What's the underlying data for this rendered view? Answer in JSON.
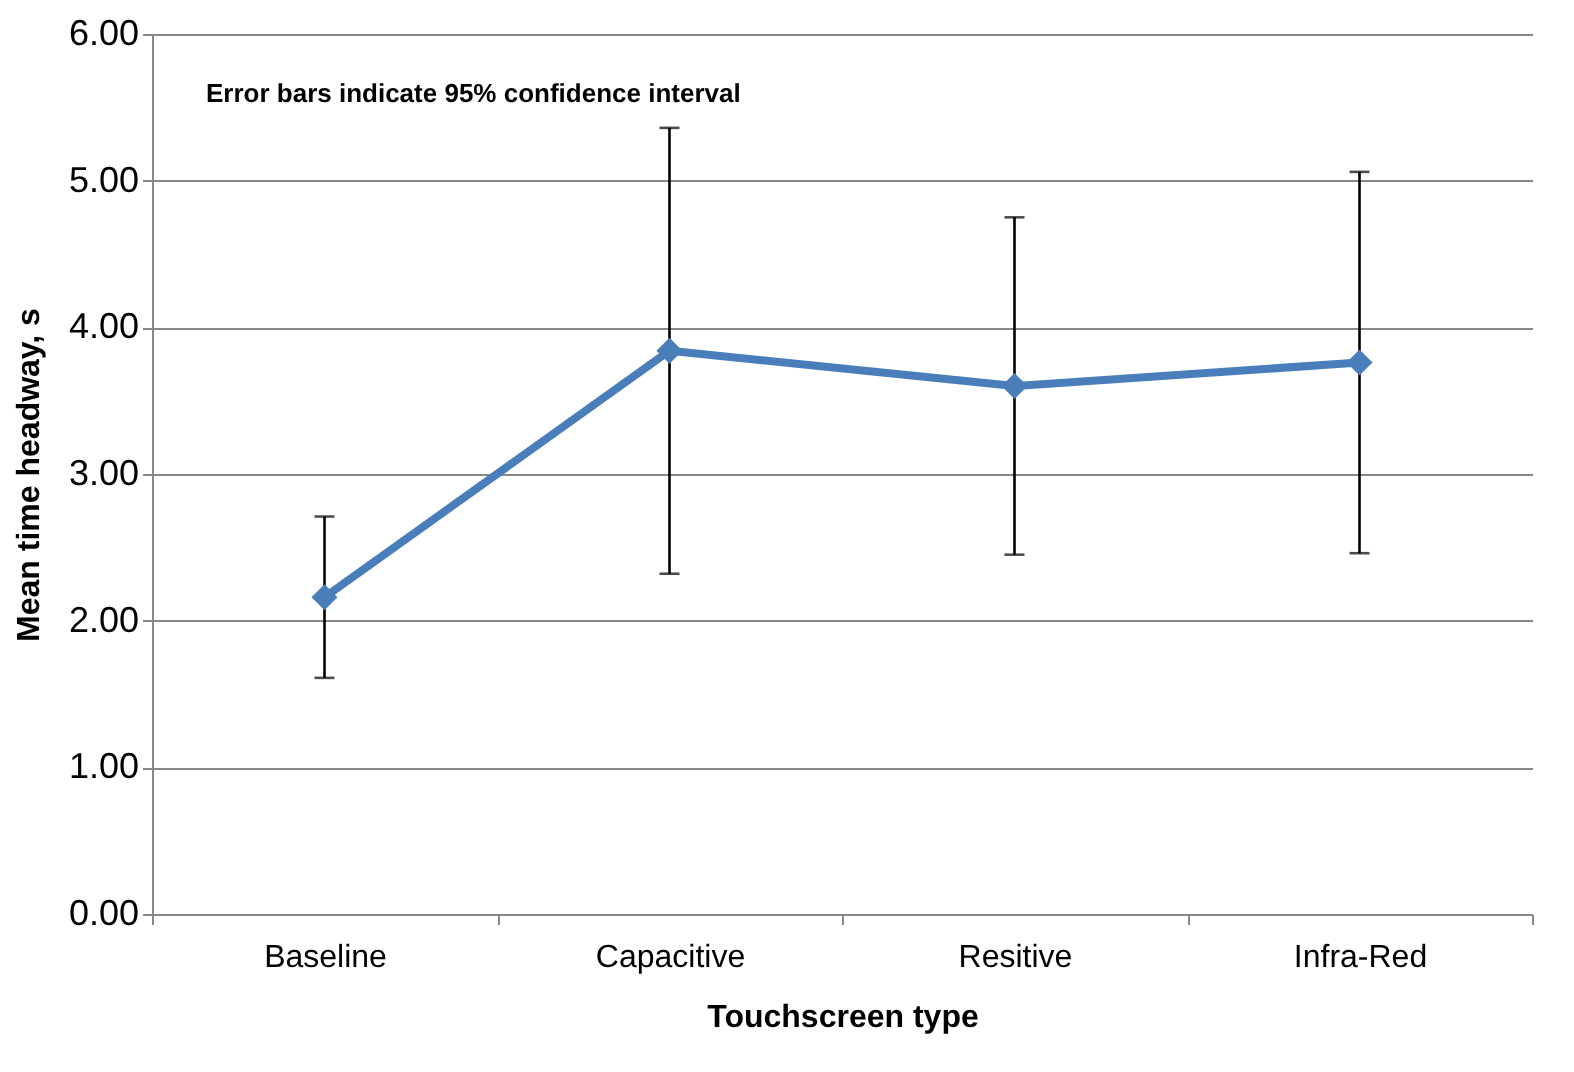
{
  "chart_data": {
    "type": "line",
    "xlabel": "Touchscreen type",
    "ylabel": "Mean time headway, s",
    "annotations": [
      "Error bars indicate 95% confidence interval"
    ],
    "categories": [
      "Baseline",
      "Capacitive",
      "Resitive",
      "Infra-Red"
    ],
    "series": [
      {
        "color": "#4a7ebb",
        "values": [
          2.16,
          3.84,
          3.6,
          3.76
        ],
        "errors": [
          0.55,
          1.52,
          1.15,
          1.3
        ]
      }
    ],
    "ylim": [
      0,
      6
    ],
    "yticks": [
      {
        "value": 0,
        "label": "0.00"
      },
      {
        "value": 1,
        "label": "1.00"
      },
      {
        "value": 2,
        "label": "2.00"
      },
      {
        "value": 3,
        "label": "3.00"
      },
      {
        "value": 4,
        "label": "4.00"
      },
      {
        "value": 5,
        "label": "5.00"
      },
      {
        "value": 6,
        "label": "6.00"
      }
    ],
    "grid": "y",
    "marker": "diamond",
    "line_style": "solid"
  }
}
